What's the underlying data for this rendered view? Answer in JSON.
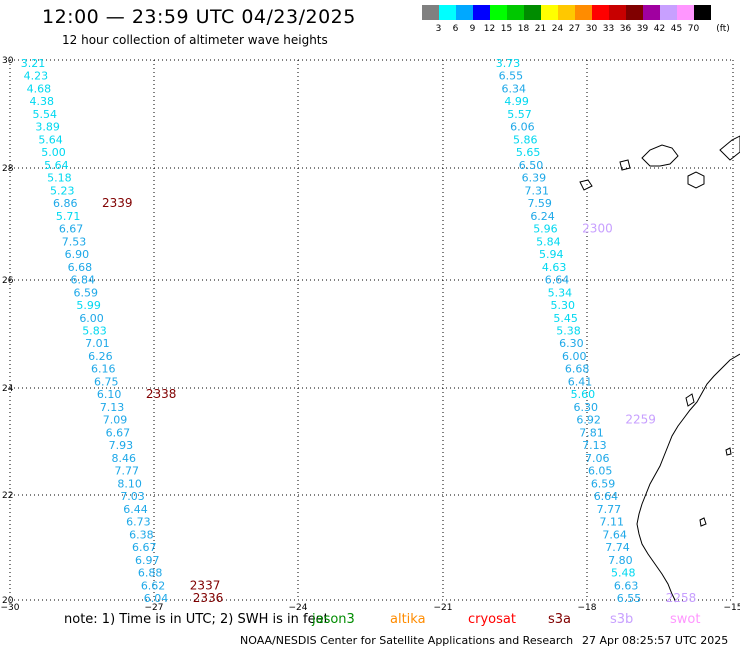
{
  "header": {
    "title": "12:00 — 23:59 UTC 04/23/2025",
    "subtitle": "12 hour collection of altimeter wave heights"
  },
  "legend": {
    "unit": "(ft)",
    "bins": [
      {
        "label": "3",
        "color": "#808080"
      },
      {
        "label": "6",
        "color": "#00ffff"
      },
      {
        "label": "9",
        "color": "#00a8ff"
      },
      {
        "label": "12",
        "color": "#0000ff"
      },
      {
        "label": "15",
        "color": "#00ff00"
      },
      {
        "label": "18",
        "color": "#00c800"
      },
      {
        "label": "21",
        "color": "#008c00"
      },
      {
        "label": "24",
        "color": "#ffff00"
      },
      {
        "label": "27",
        "color": "#ffc800"
      },
      {
        "label": "30",
        "color": "#ff8c00"
      },
      {
        "label": "33",
        "color": "#ff0000"
      },
      {
        "label": "36",
        "color": "#c80000"
      },
      {
        "label": "39",
        "color": "#800000"
      },
      {
        "label": "42",
        "color": "#a000a0"
      },
      {
        "label": "45",
        "color": "#c8a0ff"
      },
      {
        "label": "70",
        "color": "#ff96ff"
      },
      {
        "label": "",
        "color": "#000000"
      }
    ]
  },
  "axes": {
    "lat_labels": [
      "30",
      "28",
      "26",
      "24",
      "22",
      "20"
    ],
    "lon_labels": [
      "−30",
      "−27",
      "−24",
      "−21",
      "−18",
      "−15"
    ]
  },
  "tracks": [
    {
      "name": "track-west",
      "values": [
        "3.21",
        "4.23",
        "4.68",
        "4.38",
        "5.54",
        "3.89",
        "5.64",
        "5.00",
        "5.64",
        "5.18",
        "5.23",
        "6.86",
        "5.71",
        "6.67",
        "7.53",
        "6.90",
        "6.68",
        "6.84",
        "6.59",
        "5.99",
        "6.00",
        "5.83",
        "7.01",
        "6.26",
        "6.16",
        "6.75",
        "6.10",
        "7.13",
        "7.09",
        "6.67",
        "7.93",
        "8.46",
        "7.77",
        "8.10",
        "7.03",
        "6.44",
        "6.73",
        "6.38",
        "6.67",
        "6.97",
        "6.88",
        "6.62",
        "6.04"
      ],
      "times": [
        {
          "text": "2339",
          "after_index": 11
        },
        {
          "text": "2338",
          "after_index": 26
        },
        {
          "text": "2337",
          "after_index": 41
        },
        {
          "text": "2336",
          "after_index": 42
        }
      ]
    },
    {
      "name": "track-east",
      "values": [
        "3.73",
        "6.55",
        "6.34",
        "4.99",
        "5.57",
        "6.06",
        "5.86",
        "5.65",
        "6.50",
        "6.39",
        "7.31",
        "7.59",
        "6.24",
        "5.96",
        "5.84",
        "5.94",
        "4.63",
        "6.64",
        "5.34",
        "5.30",
        "5.45",
        "5.38",
        "6.30",
        "6.00",
        "6.68",
        "6.41",
        "5.60",
        "6.30",
        "6.92",
        "7.81",
        "7.13",
        "7.06",
        "6.05",
        "6.59",
        "6.64",
        "7.77",
        "7.11",
        "7.64",
        "7.74",
        "7.80",
        "5.48",
        "6.63",
        "6.55"
      ],
      "times": [
        {
          "text": "2300",
          "after_index": 13
        },
        {
          "text": "2259",
          "after_index": 28
        },
        {
          "text": "2258",
          "after_index": 42
        }
      ]
    }
  ],
  "note": {
    "prefix": "note:  1) Time is in UTC;  2) SWH is in feet",
    "satellites": [
      {
        "name": "jason3",
        "color": "#008c00"
      },
      {
        "name": "altika",
        "color": "#ff8c00"
      },
      {
        "name": "cryosat",
        "color": "#ff0000"
      },
      {
        "name": "s3a",
        "color": "#800000"
      },
      {
        "name": "s3b",
        "color": "#c8a0ff"
      },
      {
        "name": "swot",
        "color": "#ff96ff"
      }
    ]
  },
  "footer": {
    "credit": "NOAA/NESDIS Center for Satellite Applications and Research",
    "generated": "27 Apr 08:25:57 UTC 2025"
  }
}
